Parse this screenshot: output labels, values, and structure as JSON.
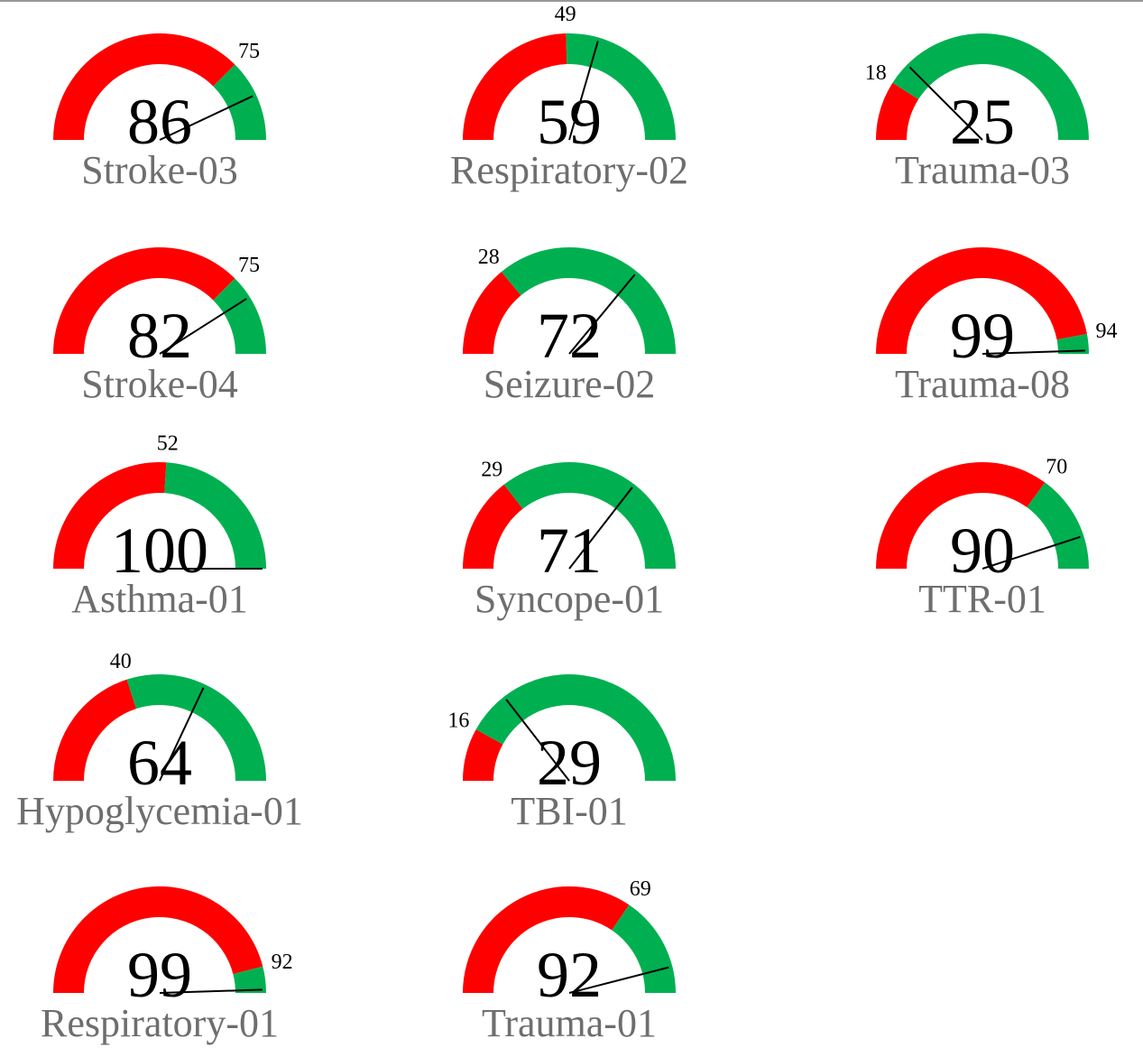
{
  "chart_data": [
    {
      "type": "gauge",
      "title": "Stroke-03",
      "value": 86,
      "threshold": 75,
      "ylim": [
        0,
        100
      ],
      "colors": [
        "#ff0000",
        "#00b050"
      ]
    },
    {
      "type": "gauge",
      "title": "Respiratory-02",
      "value": 59,
      "threshold": 49,
      "ylim": [
        0,
        100
      ],
      "colors": [
        "#ff0000",
        "#00b050"
      ]
    },
    {
      "type": "gauge",
      "title": "Trauma-03",
      "value": 25,
      "threshold": 18,
      "ylim": [
        0,
        100
      ],
      "colors": [
        "#ff0000",
        "#00b050"
      ]
    },
    {
      "type": "gauge",
      "title": "Stroke-04",
      "value": 82,
      "threshold": 75,
      "ylim": [
        0,
        100
      ],
      "colors": [
        "#ff0000",
        "#00b050"
      ]
    },
    {
      "type": "gauge",
      "title": "Seizure-02",
      "value": 72,
      "threshold": 28,
      "ylim": [
        0,
        100
      ],
      "colors": [
        "#ff0000",
        "#00b050"
      ]
    },
    {
      "type": "gauge",
      "title": "Trauma-08",
      "value": 99,
      "threshold": 94,
      "ylim": [
        0,
        100
      ],
      "colors": [
        "#ff0000",
        "#00b050"
      ]
    },
    {
      "type": "gauge",
      "title": "Asthma-01",
      "value": 100,
      "threshold": 52,
      "ylim": [
        0,
        100
      ],
      "colors": [
        "#ff0000",
        "#00b050"
      ]
    },
    {
      "type": "gauge",
      "title": "Syncope-01",
      "value": 71,
      "threshold": 29,
      "ylim": [
        0,
        100
      ],
      "colors": [
        "#ff0000",
        "#00b050"
      ]
    },
    {
      "type": "gauge",
      "title": "TTR-01",
      "value": 90,
      "threshold": 70,
      "ylim": [
        0,
        100
      ],
      "colors": [
        "#ff0000",
        "#00b050"
      ]
    },
    {
      "type": "gauge",
      "title": "Hypoglycemia-01",
      "value": 64,
      "threshold": 40,
      "ylim": [
        0,
        100
      ],
      "colors": [
        "#ff0000",
        "#00b050"
      ]
    },
    {
      "type": "gauge",
      "title": "TBI-01",
      "value": 29,
      "threshold": 16,
      "ylim": [
        0,
        100
      ],
      "colors": [
        "#ff0000",
        "#00b050"
      ]
    },
    {
      "type": "gauge",
      "title": "Respiratory-01",
      "value": 99,
      "threshold": 92,
      "ylim": [
        0,
        100
      ],
      "colors": [
        "#ff0000",
        "#00b050"
      ]
    },
    {
      "type": "gauge",
      "title": "Trauma-01",
      "value": 92,
      "threshold": 69,
      "ylim": [
        0,
        100
      ],
      "colors": [
        "#ff0000",
        "#00b050"
      ]
    }
  ]
}
